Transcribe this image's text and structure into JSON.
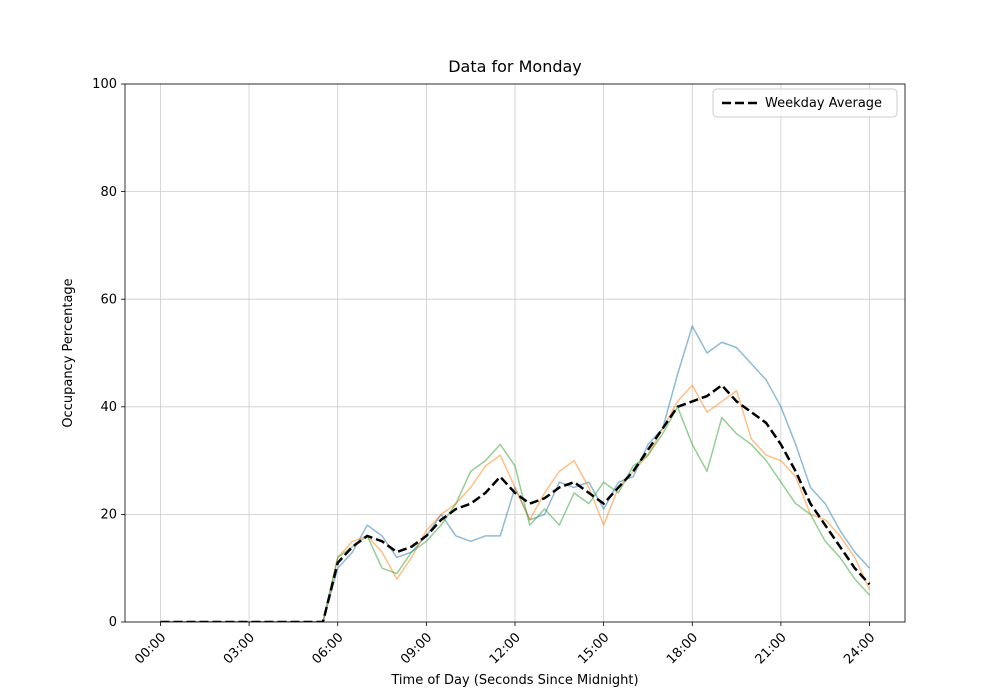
{
  "figure": {
    "title": "Data for Monday"
  },
  "chart_data": {
    "type": "line",
    "title": "Data for Monday",
    "xlabel": "Time of Day (Seconds Since Midnight)",
    "ylabel": "Occupancy Percentage",
    "xlim_seconds": [
      -4320,
      90720
    ],
    "ylim": [
      0,
      100
    ],
    "grid": true,
    "x_tick_seconds": [
      0,
      10800,
      21600,
      32400,
      43200,
      54000,
      64800,
      75600,
      86400
    ],
    "x_tick_labels": [
      "00:00",
      "03:00",
      "06:00",
      "09:00",
      "12:00",
      "15:00",
      "18:00",
      "21:00",
      "24:00"
    ],
    "y_ticks": [
      0,
      20,
      40,
      60,
      80,
      100
    ],
    "y_tick_labels": [
      "0",
      "20",
      "40",
      "60",
      "80",
      "100"
    ],
    "legend": {
      "position": "upper right",
      "entries": [
        {
          "label": "Weekday Average",
          "color": "#000000",
          "dashed": true
        }
      ]
    },
    "x_hours": [
      0,
      0.5,
      1,
      1.5,
      2,
      2.5,
      3,
      3.5,
      4,
      4.5,
      5,
      5.5,
      6,
      6.5,
      7,
      7.5,
      8,
      8.5,
      9,
      9.5,
      10,
      10.5,
      11,
      11.5,
      12,
      12.5,
      13,
      13.5,
      14,
      14.5,
      15,
      15.5,
      16,
      16.5,
      17,
      17.5,
      18,
      18.5,
      19,
      19.5,
      20,
      20.5,
      21,
      21.5,
      22,
      22.5,
      23,
      23.5,
      24
    ],
    "series": [
      {
        "name": "unlabeled-series-blue",
        "color": "#1f77b4",
        "opacity": 0.5,
        "width": 1.5,
        "dash": "",
        "in_legend": false,
        "values": [
          0,
          0,
          0,
          0,
          0,
          0,
          0,
          0,
          0,
          0,
          0,
          0,
          10,
          13,
          18,
          16,
          12,
          13,
          16,
          20,
          16,
          15,
          16,
          16,
          25,
          19,
          20,
          26,
          25,
          26,
          21,
          26,
          27,
          33,
          36,
          46,
          55,
          50,
          52,
          51,
          48,
          45,
          40,
          33,
          25,
          22,
          17,
          13,
          10
        ]
      },
      {
        "name": "unlabeled-series-orange",
        "color": "#ff7f0e",
        "opacity": 0.5,
        "width": 1.5,
        "dash": "",
        "in_legend": false,
        "values": [
          0,
          0,
          0,
          0,
          0,
          0,
          0,
          0,
          0,
          0,
          0,
          0,
          12,
          15,
          16,
          13,
          8,
          12,
          17,
          20,
          22,
          25,
          29,
          31,
          25,
          19,
          24,
          28,
          30,
          25,
          18,
          25,
          28,
          31,
          36,
          41,
          44,
          39,
          41,
          43,
          34,
          31,
          30,
          27,
          20,
          19,
          16,
          12,
          6
        ]
      },
      {
        "name": "unlabeled-series-green",
        "color": "#2ca02c",
        "opacity": 0.5,
        "width": 1.5,
        "dash": "",
        "in_legend": false,
        "values": [
          0,
          0,
          0,
          0,
          0,
          0,
          0,
          0,
          0,
          0,
          0,
          0,
          12,
          14,
          16,
          10,
          9,
          13,
          15,
          18,
          22,
          28,
          30,
          33,
          29,
          18,
          21,
          18,
          24,
          22,
          26,
          24,
          29,
          31,
          35,
          40,
          33,
          28,
          38,
          35,
          33,
          30,
          26,
          22,
          20,
          15,
          12,
          8,
          5
        ]
      },
      {
        "name": "Weekday Average",
        "color": "#000000",
        "opacity": 1,
        "width": 2.5,
        "dash": "9 4",
        "in_legend": true,
        "values": [
          0,
          0,
          0,
          0,
          0,
          0,
          0,
          0,
          0,
          0,
          0,
          0,
          11,
          14,
          16,
          15,
          13,
          14,
          16,
          19,
          21,
          22,
          24,
          27,
          24,
          22,
          23,
          25,
          26,
          24,
          22,
          25,
          28,
          32,
          36,
          40,
          41,
          42,
          44,
          41,
          39,
          37,
          33,
          28,
          22,
          18,
          14,
          10,
          7
        ]
      }
    ]
  }
}
